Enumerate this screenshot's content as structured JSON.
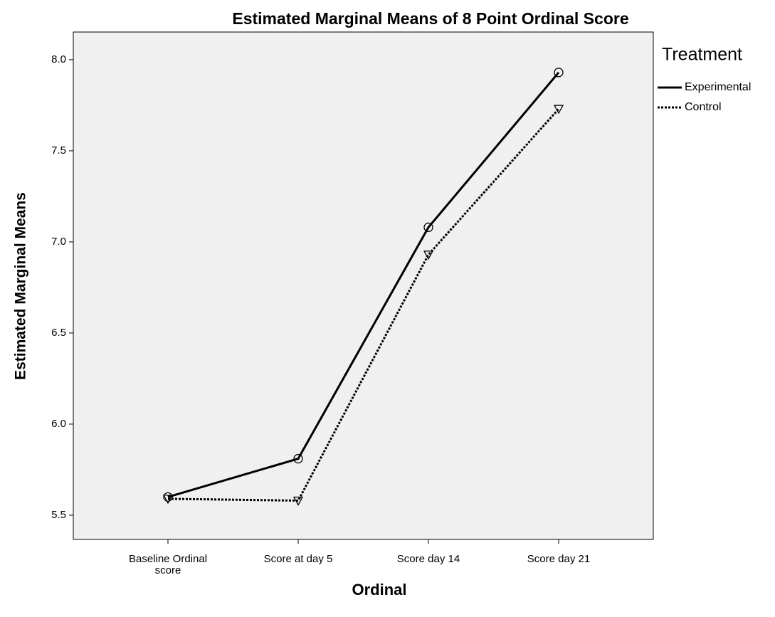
{
  "chart_data": {
    "type": "line",
    "title": "Estimated Marginal Means of 8 Point Ordinal Score",
    "x_label": "Ordinal",
    "y_label": "Estimated Marginal Means",
    "legend_title": "Treatment",
    "categories": [
      "Baseline Ordinal score",
      "Score at day 5",
      "Score day 14",
      "Score day 21"
    ],
    "series": [
      {
        "name": "Experimental",
        "color": "#000000",
        "dash": "solid",
        "marker": "circle",
        "values": [
          5.6,
          5.81,
          7.08,
          7.93
        ]
      },
      {
        "name": "Control",
        "color": "#000000",
        "dash": "dotted",
        "marker": "triangle-down",
        "values": [
          5.59,
          5.58,
          6.93,
          7.73
        ]
      }
    ],
    "ylim": [
      5.367,
      8.152
    ],
    "yticks": [
      {
        "value": 5.5,
        "label": "5.5"
      },
      {
        "value": 6,
        "label": "6.0"
      },
      {
        "value": 6.5,
        "label": "6.5"
      },
      {
        "value": 7,
        "label": "7.0"
      },
      {
        "value": 7.5,
        "label": "7.5"
      },
      {
        "value": 8,
        "label": "8.0"
      }
    ],
    "grid": false,
    "legend": "right"
  }
}
